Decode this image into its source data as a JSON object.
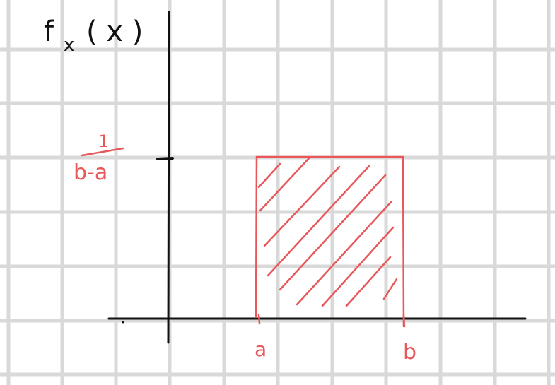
{
  "colors": {
    "grid": "#d9d9d9",
    "axis": "#111111",
    "accent": "#e8585a",
    "background": "#ffffff"
  },
  "diagram": {
    "y_label_f": "f",
    "y_label_sub": "x",
    "y_label_arg": "( x )",
    "height_label_numerator": "1",
    "height_label_denominator": "b-a",
    "x_label_a": "a",
    "x_label_b": "b"
  }
}
